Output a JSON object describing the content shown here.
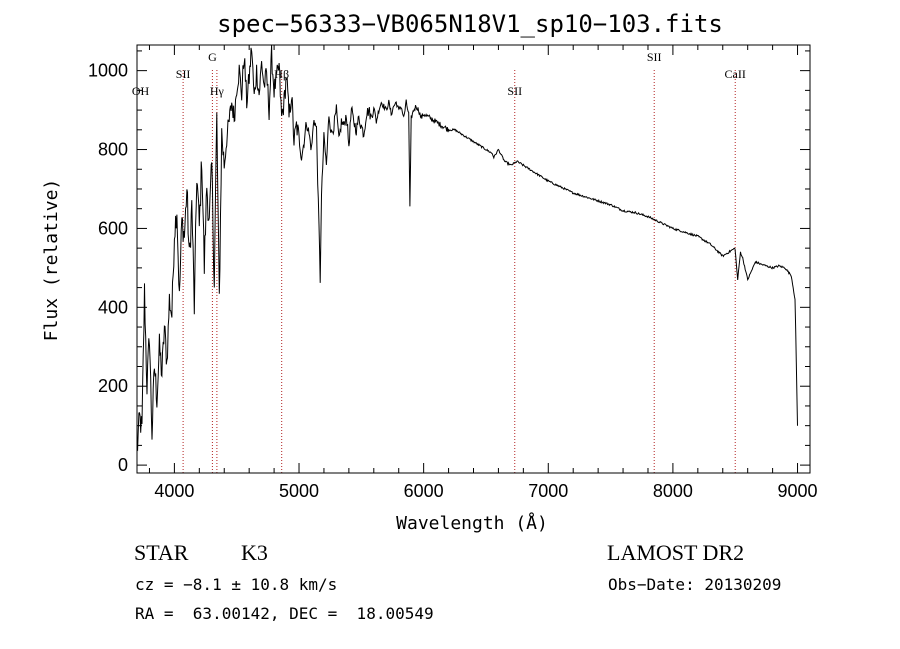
{
  "chart_data": {
    "type": "line",
    "title": "spec−56333−VB065N18V1_sp10−103.fits",
    "xlabel": "Wavelength (Å)",
    "ylabel": "Flux (relative)",
    "xlim": [
      3700,
      9100
    ],
    "ylim": [
      -20,
      1065
    ],
    "xticks": [
      4000,
      5000,
      6000,
      7000,
      8000,
      9000
    ],
    "yticks": [
      0,
      200,
      400,
      600,
      800,
      1000
    ],
    "grid": false,
    "line_color": "#000000",
    "marker_color": "#b22222",
    "spectrum": {
      "x": [
        3700,
        3720,
        3740,
        3760,
        3780,
        3800,
        3820,
        3840,
        3860,
        3880,
        3900,
        3920,
        3940,
        3960,
        3980,
        4000,
        4020,
        4040,
        4060,
        4080,
        4100,
        4120,
        4140,
        4160,
        4180,
        4200,
        4220,
        4240,
        4260,
        4280,
        4300,
        4320,
        4340,
        4360,
        4380,
        4400,
        4420,
        4440,
        4460,
        4480,
        4500,
        4520,
        4540,
        4560,
        4580,
        4600,
        4620,
        4640,
        4660,
        4680,
        4700,
        4720,
        4740,
        4760,
        4780,
        4800,
        4820,
        4840,
        4860,
        4880,
        4900,
        4920,
        4940,
        4960,
        4980,
        5000,
        5020,
        5040,
        5060,
        5080,
        5100,
        5120,
        5140,
        5160,
        5170,
        5180,
        5200,
        5220,
        5240,
        5260,
        5280,
        5300,
        5320,
        5340,
        5360,
        5380,
        5400,
        5420,
        5440,
        5460,
        5480,
        5500,
        5520,
        5540,
        5560,
        5580,
        5600,
        5620,
        5640,
        5660,
        5680,
        5700,
        5720,
        5740,
        5760,
        5780,
        5800,
        5820,
        5840,
        5860,
        5880,
        5890,
        5900,
        5920,
        5940,
        5960,
        5980,
        6000,
        6050,
        6100,
        6150,
        6200,
        6250,
        6300,
        6350,
        6400,
        6450,
        6500,
        6550,
        6563,
        6600,
        6650,
        6700,
        6750,
        6800,
        6850,
        6900,
        6950,
        7000,
        7100,
        7200,
        7300,
        7400,
        7500,
        7600,
        7700,
        7800,
        7900,
        8000,
        8100,
        8200,
        8300,
        8400,
        8498,
        8520,
        8542,
        8560,
        8600,
        8662,
        8700,
        8750,
        8800,
        8850,
        8900,
        8950,
        8980,
        9000
      ],
      "y": [
        30,
        120,
        90,
        440,
        200,
        330,
        80,
        250,
        170,
        300,
        230,
        350,
        260,
        420,
        380,
        590,
        650,
        420,
        620,
        580,
        700,
        520,
        660,
        400,
        740,
        600,
        780,
        500,
        710,
        610,
        760,
        470,
        880,
        420,
        840,
        760,
        830,
        870,
        920,
        880,
        960,
        1000,
        940,
        1040,
        920,
        980,
        1060,
        930,
        1000,
        940,
        1020,
        960,
        990,
        900,
        1040,
        950,
        980,
        1010,
        880,
        920,
        990,
        880,
        940,
        820,
        860,
        830,
        780,
        820,
        870,
        840,
        800,
        880,
        850,
        600,
        470,
        680,
        830,
        760,
        890,
        840,
        860,
        900,
        820,
        870,
        860,
        890,
        810,
        900,
        870,
        850,
        880,
        860,
        840,
        890,
        900,
        880,
        910,
        870,
        900,
        920,
        910,
        900,
        920,
        890,
        910,
        920,
        900,
        910,
        880,
        920,
        890,
        650,
        880,
        900,
        910,
        900,
        880,
        890,
        880,
        870,
        860,
        850,
        850,
        840,
        830,
        820,
        810,
        800,
        790,
        780,
        800,
        770,
        760,
        770,
        760,
        750,
        740,
        730,
        720,
        705,
        690,
        680,
        670,
        660,
        645,
        640,
        630,
        615,
        600,
        590,
        580,
        560,
        530,
        550,
        470,
        540,
        525,
        470,
        515,
        510,
        505,
        500,
        505,
        500,
        480,
        420,
        100
      ]
    },
    "line_markers": [
      {
        "label": "OH",
        "x": 3728,
        "row": 3,
        "has_line": false
      },
      {
        "label": "SII",
        "x": 4070,
        "row": 2,
        "has_line": true
      },
      {
        "label": "G",
        "x": 4305,
        "row": 1,
        "has_line": true
      },
      {
        "label": "Hγ",
        "x": 4341,
        "row": 3,
        "has_line": true
      },
      {
        "label": "Hβ",
        "x": 4861,
        "row": 2,
        "has_line": true
      },
      {
        "label": "SII",
        "x": 6731,
        "row": 3,
        "has_line": true
      },
      {
        "label": "SII",
        "x": 7850,
        "row": 1,
        "has_line": true
      },
      {
        "label": "CaII",
        "x": 8500,
        "row": 2,
        "has_line": true
      }
    ]
  },
  "footer": {
    "object_class": "STAR",
    "subclass": "K3",
    "survey": "LAMOST DR2",
    "cz": "cz = −8.1 ± 10.8 km/s",
    "obs_date": "Obs−Date: 20130209",
    "coords": "RA =  63.00142, DEC =  18.00549"
  }
}
